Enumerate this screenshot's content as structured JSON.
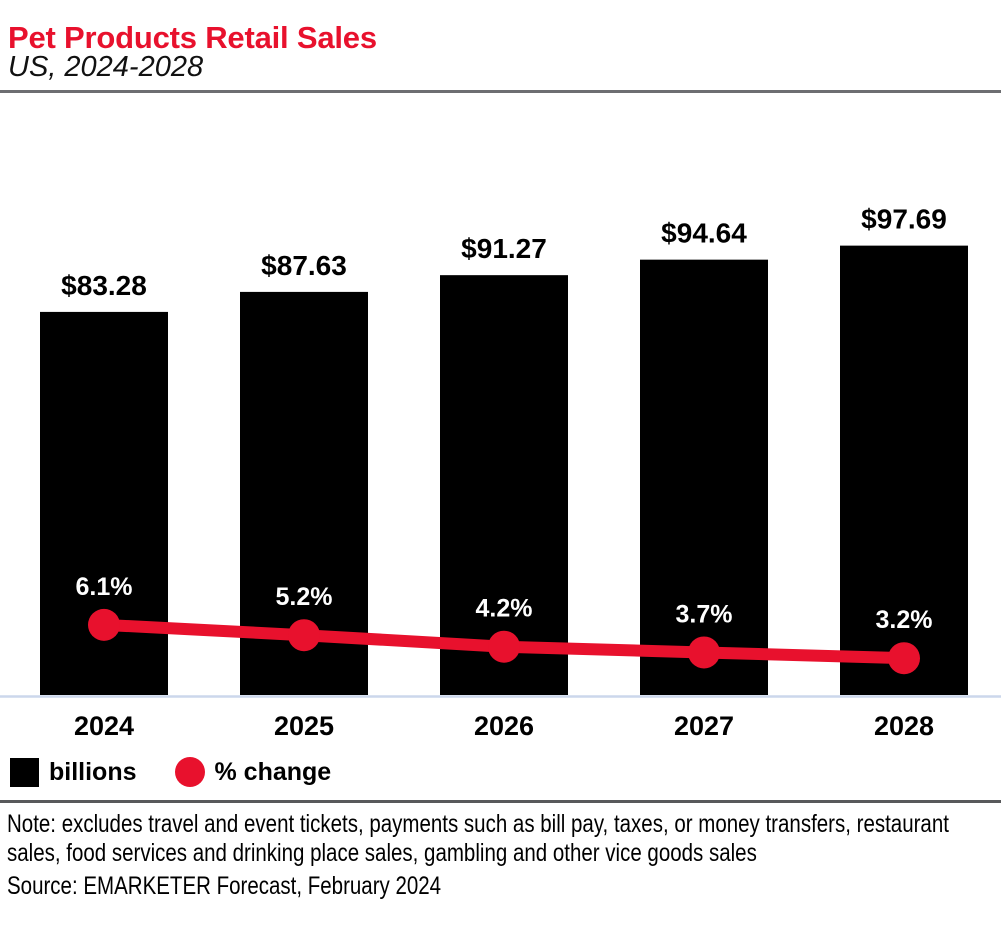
{
  "header": {
    "title": "Pet Products Retail Sales",
    "subtitle": "US, 2024-2028"
  },
  "chart_data": {
    "type": "bar",
    "subtype": "combo-bar-line",
    "categories": [
      "2024",
      "2025",
      "2026",
      "2027",
      "2028"
    ],
    "series": [
      {
        "name": "billions",
        "chart": "bar",
        "color": "#000000",
        "values": [
          83.28,
          87.63,
          91.27,
          94.64,
          97.69
        ],
        "labels": [
          "$83.28",
          "$87.63",
          "$91.27",
          "$94.64",
          "$97.69"
        ],
        "label_color": "#000000"
      },
      {
        "name": "% change",
        "chart": "line",
        "color": "#e8112d",
        "values": [
          6.1,
          5.2,
          4.2,
          3.7,
          3.2
        ],
        "labels": [
          "6.1%",
          "5.2%",
          "4.2%",
          "3.7%",
          "3.2%"
        ],
        "label_color": "#ffffff"
      }
    ],
    "title": "Pet Products Retail Sales",
    "subtitle": "US, 2024-2028",
    "xlabel": "",
    "ylabel": "",
    "ylim": [
      0,
      130
    ],
    "y2lim": [
      0,
      52
    ],
    "grid": false,
    "legend_position": "bottom",
    "axis_line_color": "#ccd7ec"
  },
  "legend": {
    "items": [
      {
        "label": "billions",
        "swatch": "square",
        "color": "#000000"
      },
      {
        "label": "% change",
        "swatch": "circle",
        "color": "#e8112d"
      }
    ]
  },
  "footer": {
    "note": "Note: excludes travel and event tickets, payments such as bill pay, taxes, or money transfers, restaurant sales, food services and drinking place sales, gambling and other vice goods sales",
    "source": "Source: EMARKETER Forecast, February 2024"
  },
  "colors": {
    "accent_red": "#e8112d",
    "bar_black": "#000000",
    "baseline_blue": "#ccd7ec",
    "rule_gray_top": "#6d6e71",
    "rule_gray_bottom": "#58595b"
  }
}
